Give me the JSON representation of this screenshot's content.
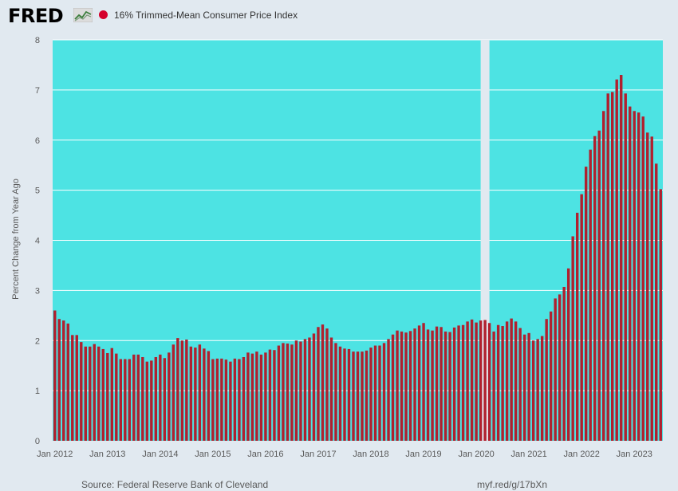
{
  "header": {
    "logo_text": "FRED",
    "logo_icon": "fred-graph-icon",
    "series_label": "16% Trimmed-Mean Consumer Price Index"
  },
  "colors": {
    "page_bg": "#e1e9f0",
    "plot_bg": "#4de3e3",
    "bar": "#b0202e",
    "recession": "#e1e9f0",
    "gridline": "#ffffff",
    "legend_dot": "#d5002b"
  },
  "footer": {
    "source": "Source: Federal Reserve Bank of Cleveland",
    "short_url": "myf.red/g/17bXn"
  },
  "chart_data": {
    "type": "bar",
    "title": "16% Trimmed-Mean Consumer Price Index",
    "ylabel": "Percent Change from Year Ago",
    "xlabel": "",
    "ylim": [
      0,
      8
    ],
    "yticks": [
      0,
      1,
      2,
      3,
      4,
      5,
      6,
      7,
      8
    ],
    "grid": true,
    "start": "2012-01",
    "frequency": "monthly",
    "xtick_labels": [
      "Jan 2012",
      "Jan 2013",
      "Jan 2014",
      "Jan 2015",
      "Jan 2016",
      "Jan 2017",
      "Jan 2018",
      "Jan 2019",
      "Jan 2020",
      "Jan 2021",
      "Jan 2022",
      "Jan 2023"
    ],
    "recession": {
      "start": "2020-02",
      "end": "2020-04"
    },
    "values": [
      2.6,
      2.43,
      2.4,
      2.34,
      2.11,
      2.11,
      1.97,
      1.88,
      1.88,
      1.93,
      1.88,
      1.83,
      1.75,
      1.85,
      1.74,
      1.63,
      1.63,
      1.63,
      1.72,
      1.72,
      1.67,
      1.58,
      1.6,
      1.67,
      1.72,
      1.65,
      1.76,
      1.92,
      2.05,
      2.0,
      2.02,
      1.88,
      1.86,
      1.92,
      1.84,
      1.79,
      1.63,
      1.64,
      1.64,
      1.62,
      1.58,
      1.64,
      1.63,
      1.67,
      1.76,
      1.74,
      1.78,
      1.72,
      1.76,
      1.82,
      1.81,
      1.9,
      1.95,
      1.94,
      1.92,
      2.0,
      1.98,
      2.03,
      2.06,
      2.14,
      2.27,
      2.32,
      2.24,
      2.06,
      1.95,
      1.88,
      1.84,
      1.83,
      1.78,
      1.78,
      1.78,
      1.8,
      1.86,
      1.9,
      1.9,
      1.95,
      2.03,
      2.12,
      2.2,
      2.18,
      2.16,
      2.19,
      2.24,
      2.3,
      2.35,
      2.22,
      2.2,
      2.28,
      2.27,
      2.18,
      2.17,
      2.26,
      2.3,
      2.31,
      2.38,
      2.42,
      2.36,
      2.4,
      2.41,
      2.35,
      2.18,
      2.31,
      2.29,
      2.38,
      2.44,
      2.38,
      2.25,
      2.12,
      2.15,
      2.0,
      2.03,
      2.09,
      2.43,
      2.58,
      2.84,
      2.92,
      3.07,
      3.44,
      4.08,
      4.55,
      4.92,
      5.47,
      5.81,
      6.08,
      6.19,
      6.58,
      6.93,
      6.96,
      7.21,
      7.3,
      6.93,
      6.67,
      6.58,
      6.55,
      6.47,
      6.15,
      6.07,
      5.53,
      5.02
    ]
  }
}
